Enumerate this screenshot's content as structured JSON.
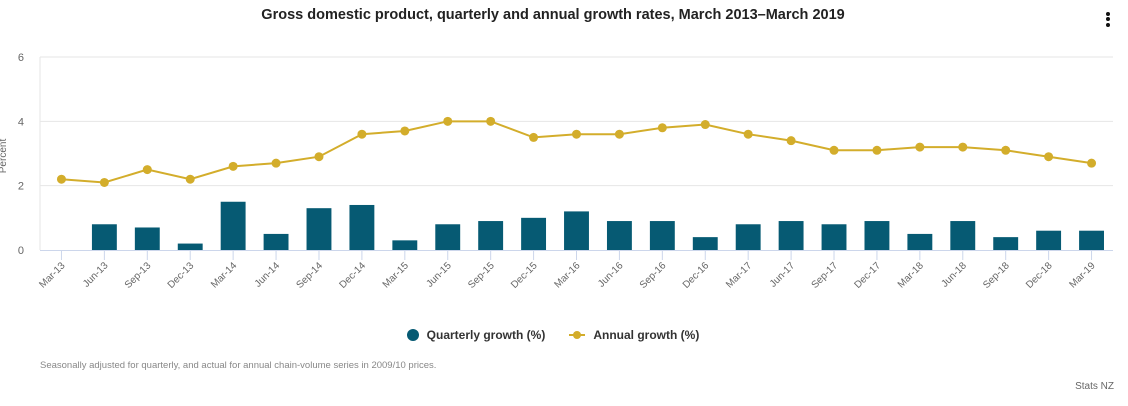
{
  "header": {
    "title": "Gross domestic product, quarterly and annual growth rates, March 2013–March 2019",
    "menu_icon": "more-vertical-icon"
  },
  "caption": "Seasonally adjusted for quarterly, and actual for annual chain-volume series in 2009/10 prices.",
  "credit": "Stats NZ",
  "colors": {
    "quarterly": "#065A73",
    "annual": "#D3AD2B",
    "grid": "#E6E6E6",
    "axis": "#CCD6EB"
  },
  "chart_data": {
    "type": "bar",
    "title": "Gross domestic product, quarterly and annual growth rates, March 2013–March 2019",
    "xlabel": "",
    "ylabel": "Percent",
    "ylim": [
      0,
      6
    ],
    "yticks": [
      "0",
      "2",
      "4",
      "6"
    ],
    "grid": true,
    "legend_position": "bottom",
    "categories": [
      "Mar-13",
      "Jun-13",
      "Sep-13",
      "Dec-13",
      "Mar-14",
      "Jun-14",
      "Sep-14",
      "Dec-14",
      "Mar-15",
      "Jun-15",
      "Sep-15",
      "Dec-15",
      "Mar-16",
      "Jun-16",
      "Sep-16",
      "Dec-16",
      "Mar-17",
      "Jun-17",
      "Sep-17",
      "Dec-17",
      "Mar-18",
      "Jun-18",
      "Sep-18",
      "Dec-18",
      "Mar-19"
    ],
    "series": [
      {
        "name": "Quarterly growth (%)",
        "type": "bar",
        "values": [
          0,
          0.8,
          0.7,
          0.2,
          1.5,
          0.5,
          1.3,
          1.4,
          0.3,
          0.8,
          0.9,
          1.0,
          1.2,
          0.9,
          0.9,
          0.4,
          0.8,
          0.9,
          0.8,
          0.9,
          0.5,
          0.9,
          0.4,
          0.6,
          0.6
        ]
      },
      {
        "name": "Annual growth (%)",
        "type": "line",
        "values": [
          2.2,
          2.1,
          2.5,
          2.2,
          2.6,
          2.7,
          2.9,
          3.6,
          3.7,
          4.0,
          4.0,
          3.5,
          3.6,
          3.6,
          3.8,
          3.9,
          3.6,
          3.4,
          3.1,
          3.1,
          3.2,
          3.2,
          3.1,
          2.9,
          2.7
        ]
      }
    ]
  }
}
